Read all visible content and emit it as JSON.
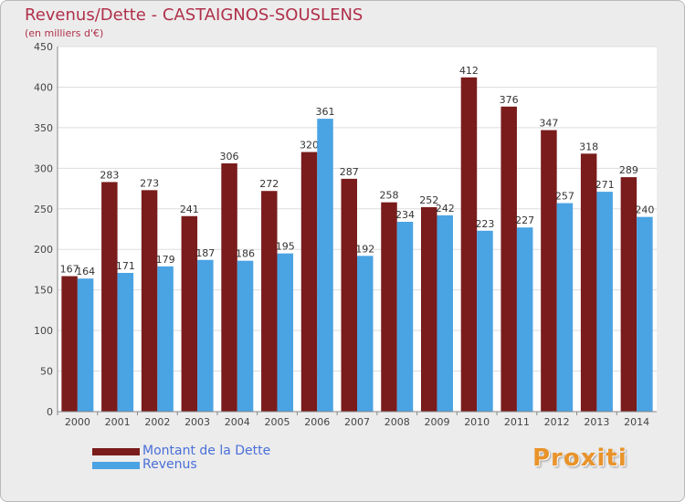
{
  "chart_data": {
    "type": "bar",
    "title": "Revenus/Dette - CASTAIGNOS-SOUSLENS",
    "subtitle": "(en milliers d'€)",
    "categories": [
      "2000",
      "2001",
      "2002",
      "2003",
      "2004",
      "2005",
      "2006",
      "2007",
      "2008",
      "2009",
      "2010",
      "2011",
      "2012",
      "2013",
      "2014"
    ],
    "series": [
      {
        "name": "Montant de la Dette",
        "color": "#7a1c1c",
        "values": [
          167,
          283,
          273,
          241,
          306,
          272,
          320,
          287,
          258,
          252,
          412,
          376,
          347,
          318,
          289
        ]
      },
      {
        "name": "Revenus",
        "color": "#4aa3e3",
        "values": [
          164,
          171,
          179,
          187,
          186,
          195,
          361,
          192,
          234,
          242,
          223,
          227,
          257,
          271,
          240
        ]
      }
    ],
    "yticks": [
      0,
      50,
      100,
      150,
      200,
      250,
      300,
      350,
      400,
      450
    ],
    "ylim": [
      0,
      450
    ],
    "grid": true,
    "legend": "bottom-left"
  },
  "brand": "Proxiti"
}
